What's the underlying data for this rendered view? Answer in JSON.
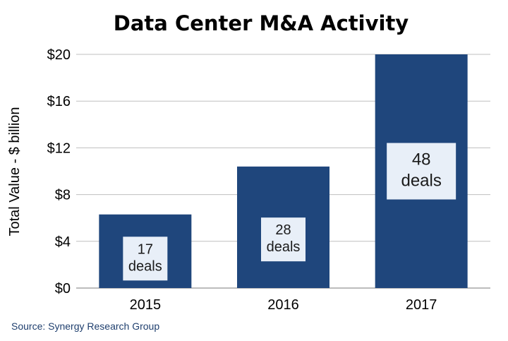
{
  "chart_data": {
    "type": "bar",
    "title": "Data Center M&A Activity",
    "xlabel": "",
    "ylabel": "Total Value - $ billion",
    "categories": [
      "2015",
      "2016",
      "2017"
    ],
    "values": [
      6.3,
      10.4,
      20
    ],
    "ylim": [
      0,
      20
    ],
    "yticks": [
      0,
      4,
      8,
      12,
      16,
      20
    ],
    "ytick_labels": [
      "$0",
      "$4",
      "$8",
      "$12",
      "$16",
      "$20"
    ],
    "data_labels": [
      {
        "count": "17",
        "unit": "deals"
      },
      {
        "count": "28",
        "unit": "deals"
      },
      {
        "count": "48",
        "unit": "deals"
      }
    ],
    "grid": true,
    "legend": "none",
    "source": "Source: Synergy Research Group"
  },
  "colors": {
    "bar": "#1F467C",
    "label_box": "#E8EFF8",
    "grid": "#BFBFBF",
    "axis": "#A6A6A6",
    "source": "#1F3F6E"
  }
}
